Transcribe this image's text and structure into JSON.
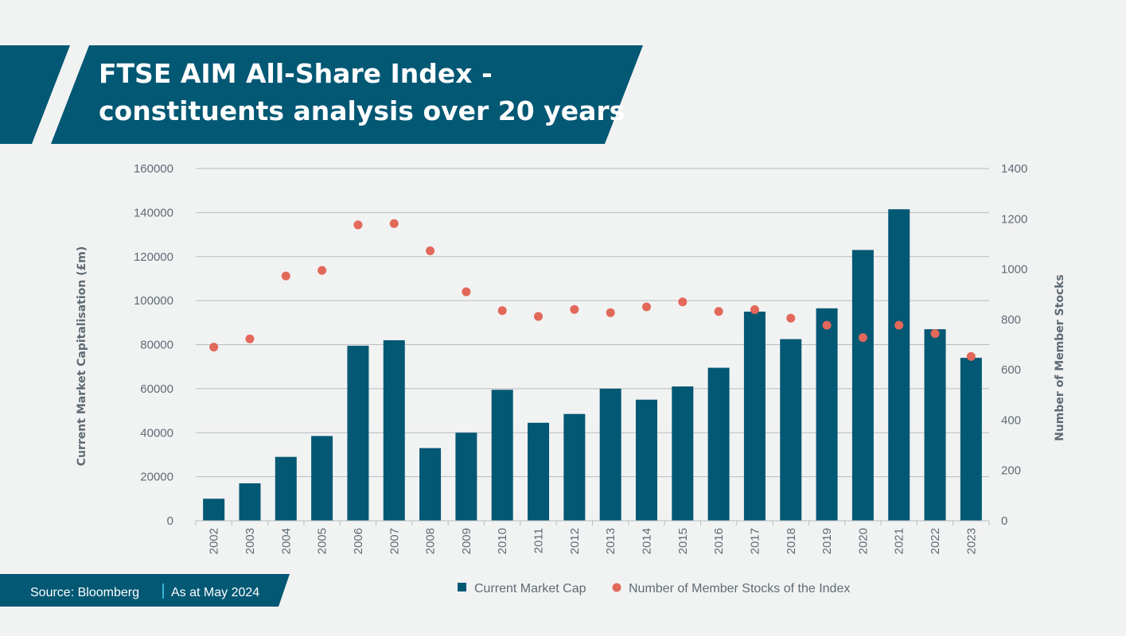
{
  "header": {
    "title_line1": "FTSE AIM All-Share Index -",
    "title_line2": "constituents analysis over 20 years"
  },
  "footer": {
    "source": "Source: Bloomberg",
    "date": "As at May 2024"
  },
  "colors": {
    "banner": "#035874",
    "bar": "#035874",
    "dot": "#e2685a",
    "grid": "#b9bcbf",
    "text": "#5f6b74",
    "background": "#f1f2f2"
  },
  "chart_data": {
    "type": "bar",
    "categories": [
      "2002",
      "2003",
      "2004",
      "2005",
      "2006",
      "2007",
      "2008",
      "2009",
      "2010",
      "2011",
      "2012",
      "2013",
      "2014",
      "2015",
      "2016",
      "2017",
      "2018",
      "2019",
      "2020",
      "2021",
      "2022",
      "2023"
    ],
    "series": [
      {
        "name": "Current Market Cap",
        "type": "bar",
        "axis": "left",
        "values": [
          10000,
          17000,
          29000,
          38500,
          79500,
          82000,
          33000,
          40000,
          59500,
          44500,
          48500,
          60000,
          55000,
          61000,
          69500,
          95000,
          82500,
          96500,
          123000,
          141500,
          87000,
          74000
        ]
      },
      {
        "name": "Number of Member Stocks of the Index",
        "type": "scatter",
        "axis": "right",
        "values": [
          690,
          723,
          973,
          995,
          1176,
          1181,
          1073,
          910,
          835,
          812,
          840,
          827,
          850,
          870,
          832,
          839,
          805,
          777,
          728,
          777,
          744,
          653
        ]
      }
    ],
    "ylabel": "Current Market Capitalisation (£m)",
    "y2label": "Number of Member Stocks",
    "ylim": [
      0,
      160000
    ],
    "y2lim": [
      0,
      1400
    ],
    "yticks": [
      "0",
      "20000",
      "40000",
      "60000",
      "80000",
      "100000",
      "120000",
      "140000",
      "160000"
    ],
    "y2ticks": [
      "0",
      "200",
      "400",
      "600",
      "800",
      "1000",
      "1200",
      "1400"
    ],
    "grid": true,
    "legend": "bottom"
  }
}
